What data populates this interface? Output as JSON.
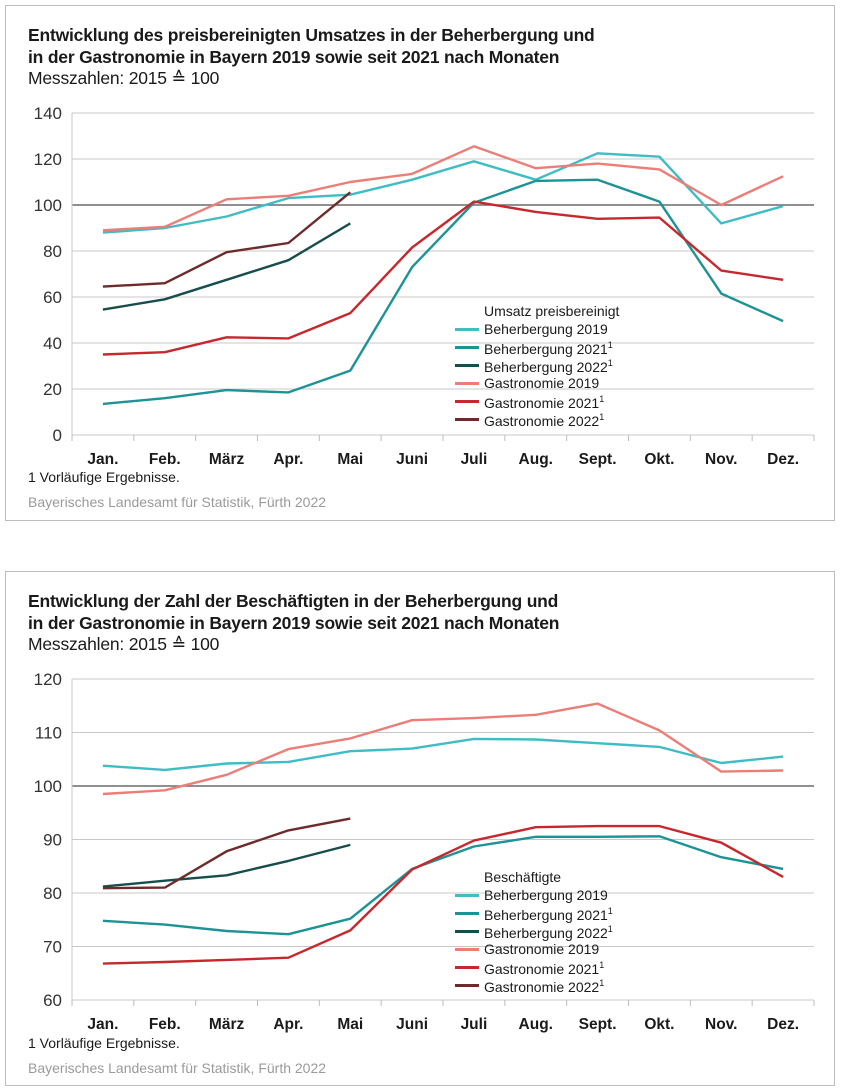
{
  "chart_data": [
    {
      "type": "line",
      "title": "Entwicklung des preisbereinigten Umsatzes in der Beherbergung und in der Gastronomie in Bayern 2019 sowie seit 2021 nach Monaten",
      "title_lines": [
        "Entwicklung des preisbereinigten Umsatzes in der Beherbergung und",
        "in der Gastronomie in Bayern 2019 sowie seit 2021 nach Monaten"
      ],
      "subtitle": "Messzahlen: 2015 ≙ 100",
      "xlabel": "",
      "ylabel": "",
      "categories": [
        "Jan.",
        "Feb.",
        "März",
        "Apr.",
        "Mai",
        "Juni",
        "Juli",
        "Aug.",
        "Sept.",
        "Okt.",
        "Nov.",
        "Dez."
      ],
      "ylim": [
        0,
        140
      ],
      "yticks": [
        0,
        20,
        40,
        60,
        80,
        100,
        120,
        140
      ],
      "reference_line": 100,
      "grid": true,
      "legend_title": "Umsatz preisbereinigt",
      "legend_position": "center-right",
      "series": [
        {
          "name": "Beherbergung 2019",
          "footnote": "",
          "color": "#3fbcc4",
          "values": [
            88,
            90,
            95,
            103,
            104.5,
            111,
            119,
            111,
            122.5,
            121,
            92,
            99.5
          ]
        },
        {
          "name": "Beherbergung 2021",
          "footnote": "1",
          "color": "#1e9396",
          "values": [
            13.5,
            16,
            19.5,
            18.5,
            28,
            73,
            101,
            110.5,
            111,
            101.5,
            61.5,
            49.5
          ]
        },
        {
          "name": "Beherbergung 2022",
          "footnote": "1",
          "color": "#174e4c",
          "values": [
            54.5,
            59,
            67.5,
            76,
            92,
            null,
            null,
            null,
            null,
            null,
            null,
            null
          ]
        },
        {
          "name": "Gastronomie 2019",
          "footnote": "",
          "color": "#ec7e78",
          "values": [
            89,
            90.5,
            102.5,
            104,
            110,
            113.5,
            125.5,
            116,
            118,
            115.5,
            100,
            112.5
          ]
        },
        {
          "name": "Gastronomie 2021",
          "footnote": "1",
          "color": "#c7282d",
          "values": [
            35,
            36,
            42.5,
            42,
            53,
            81.5,
            101.5,
            97,
            94,
            94.5,
            71.5,
            67.5
          ]
        },
        {
          "name": "Gastronomie 2022",
          "footnote": "1",
          "color": "#6e2b2b",
          "values": [
            64.5,
            66,
            79.5,
            83.5,
            105.5,
            null,
            null,
            null,
            null,
            null,
            null,
            null
          ]
        }
      ],
      "footnote": "1  Vorläufige Ergebnisse.",
      "source": "Bayerisches Landesamt für Statistik, Fürth 2022"
    },
    {
      "type": "line",
      "title": "Entwicklung der Zahl der Beschäftigten in der Beherbergung und in der Gastronomie in Bayern 2019 sowie seit 2021 nach Monaten",
      "title_lines": [
        "Entwicklung der Zahl der Beschäftigten in der Beherbergung und",
        "in der Gastronomie in Bayern 2019 sowie seit 2021 nach Monaten"
      ],
      "subtitle": "Messzahlen: 2015 ≙ 100",
      "xlabel": "",
      "ylabel": "",
      "categories": [
        "Jan.",
        "Feb.",
        "März",
        "Apr.",
        "Mai",
        "Juni",
        "Juli",
        "Aug.",
        "Sept.",
        "Okt.",
        "Nov.",
        "Dez."
      ],
      "ylim": [
        60,
        120
      ],
      "yticks": [
        60,
        70,
        80,
        90,
        100,
        110,
        120
      ],
      "reference_line": 100,
      "grid": true,
      "legend_title": "Beschäftigte",
      "legend_position": "bottom-center",
      "series": [
        {
          "name": "Beherbergung 2019",
          "footnote": "",
          "color": "#3fbcc4",
          "values": [
            103.8,
            103,
            104.2,
            104.5,
            106.5,
            107,
            108.8,
            108.7,
            108,
            107.3,
            104.3,
            105.5
          ]
        },
        {
          "name": "Beherbergung 2021",
          "footnote": "1",
          "color": "#1e9396",
          "values": [
            74.8,
            74.1,
            72.9,
            72.3,
            75.2,
            84.5,
            88.7,
            90.5,
            90.5,
            90.6,
            86.7,
            84.5
          ]
        },
        {
          "name": "Beherbergung 2022",
          "footnote": "1",
          "color": "#174e4c",
          "values": [
            81.2,
            82.3,
            83.3,
            86,
            89,
            null,
            null,
            null,
            null,
            null,
            null,
            null
          ]
        },
        {
          "name": "Gastronomie 2019",
          "footnote": "",
          "color": "#ec7e78",
          "values": [
            98.5,
            99.2,
            102.1,
            106.9,
            108.9,
            112.3,
            112.7,
            113.3,
            115.4,
            110.4,
            102.7,
            102.9
          ]
        },
        {
          "name": "Gastronomie 2021",
          "footnote": "1",
          "color": "#c7282d",
          "values": [
            66.8,
            67.1,
            67.5,
            67.9,
            73,
            84.4,
            89.8,
            92.3,
            92.5,
            92.5,
            89.4,
            83
          ]
        },
        {
          "name": "Gastronomie 2022",
          "footnote": "1",
          "color": "#6e2b2b",
          "values": [
            80.9,
            81,
            87.8,
            91.7,
            93.9,
            null,
            null,
            null,
            null,
            null,
            null,
            null
          ]
        }
      ],
      "footnote": "1  Vorläufige Ergebnisse.",
      "source": "Bayerisches Landesamt für Statistik, Fürth 2022"
    }
  ]
}
